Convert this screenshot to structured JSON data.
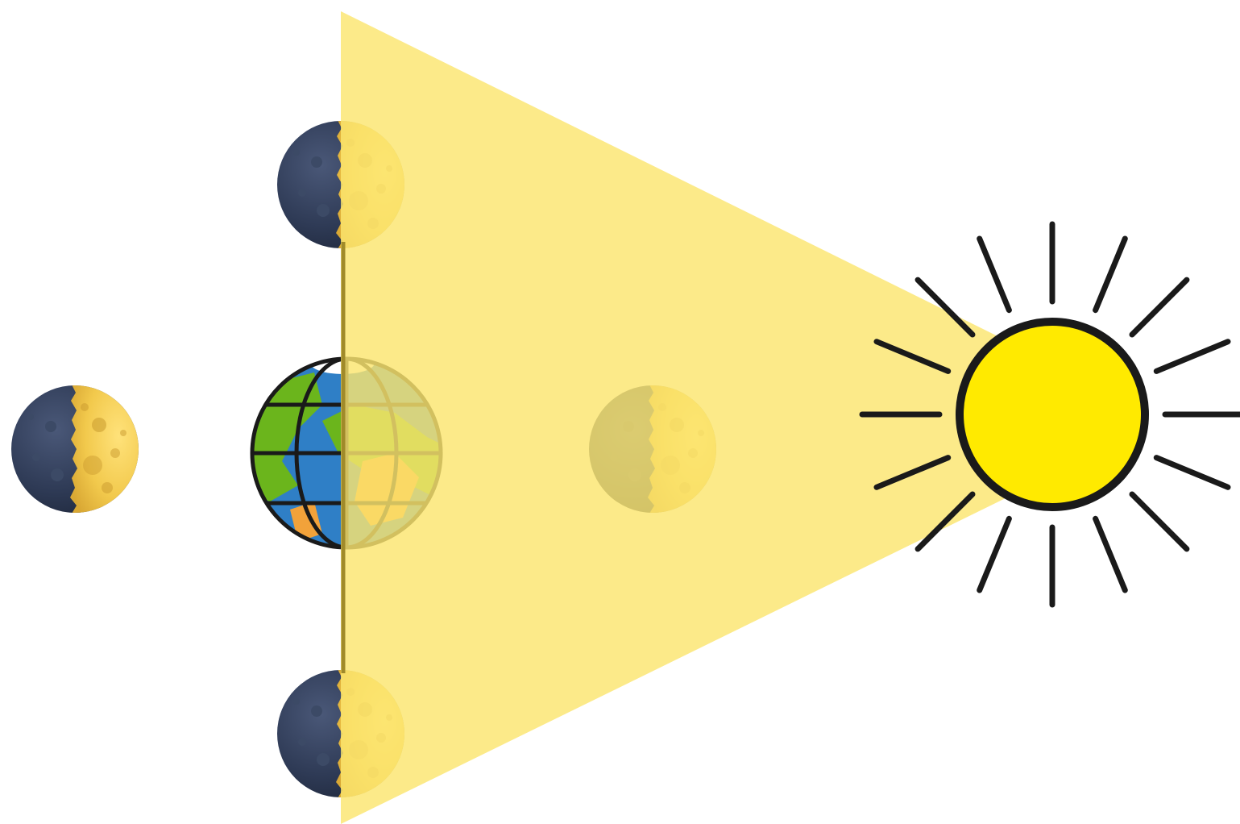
{
  "diagram": {
    "background": "#ffffff",
    "colors": {
      "light_beam": "#fbe56f",
      "beam_edge": "#a08a2a",
      "sun_fill": "#ffea00",
      "outline": "#1a1a1a",
      "moon_dark": "#2e3a55",
      "moon_dark_shade": "#3c4a66",
      "moon_lit": "#f2c94c",
      "moon_lit_highlight": "#ffe27a",
      "moon_crater": "#c99a2e",
      "earth_ocean": "#2f7fc6",
      "earth_land": "#6bb51c",
      "earth_desert": "#f2a23a",
      "earth_ice": "#ffffff"
    },
    "sun": {
      "name": "sun-icon",
      "ray_count": 16
    },
    "earth": {
      "name": "earth-globe-icon"
    },
    "moons": [
      {
        "name": "moon-top-icon",
        "phase": "first-quarter"
      },
      {
        "name": "moon-left-icon",
        "phase": "first-quarter"
      },
      {
        "name": "moon-right-icon",
        "phase": "first-quarter"
      },
      {
        "name": "moon-bottom-icon",
        "phase": "first-quarter"
      }
    ]
  }
}
